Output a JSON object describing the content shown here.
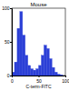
{
  "chart_data": {
    "type": "histogram",
    "title": "Mouse",
    "x_label": "C-term-FITC",
    "bins": [
      0,
      5,
      10,
      15,
      20,
      25,
      30,
      35,
      40,
      45,
      50,
      55,
      60,
      65,
      70,
      75,
      80,
      85,
      90,
      95,
      100
    ],
    "values": [
      5,
      20,
      70,
      95,
      60,
      30,
      15,
      10,
      8,
      10,
      15,
      30,
      45,
      40,
      25,
      12,
      5,
      2,
      1,
      0
    ],
    "color": "#2b3fd6",
    "xlim": [
      0,
      100
    ],
    "xticks": [
      0,
      50,
      100
    ],
    "ylim": [
      0,
      100
    ],
    "yticks": [
      0,
      50,
      100
    ]
  }
}
